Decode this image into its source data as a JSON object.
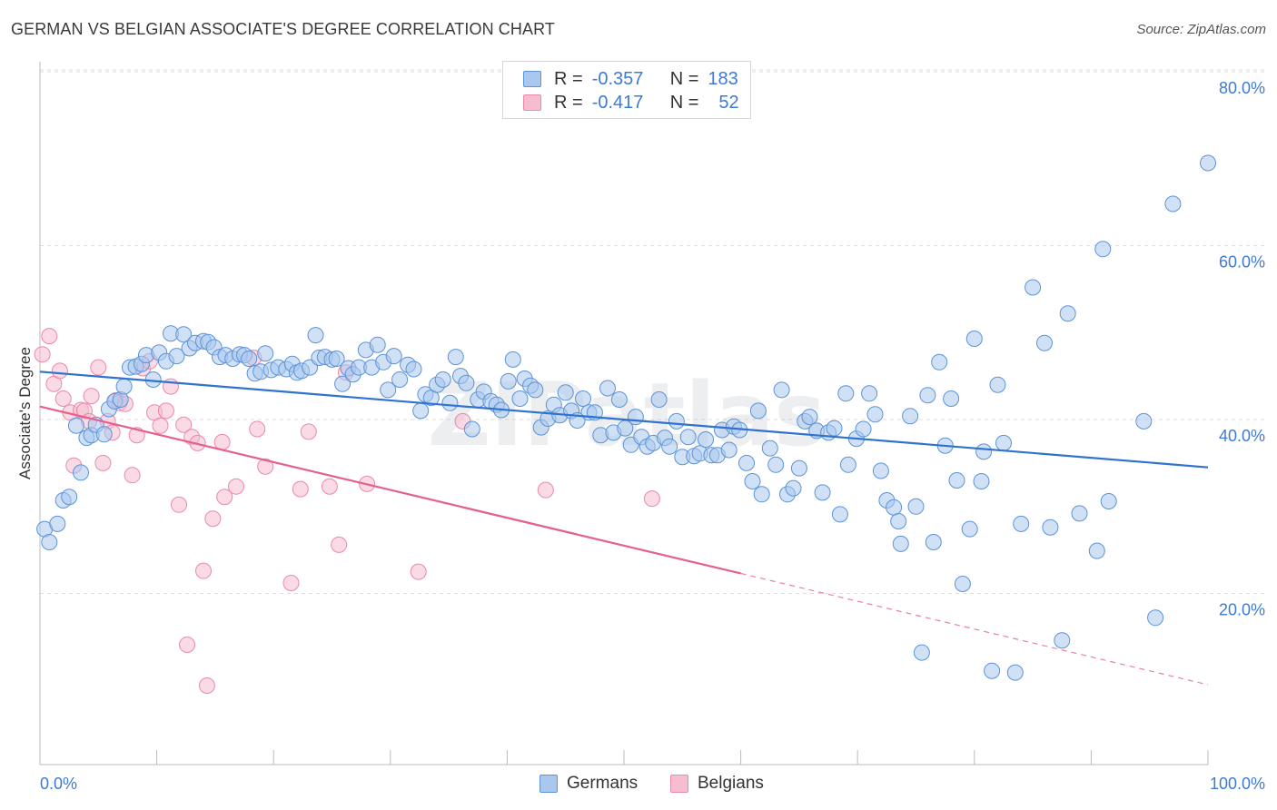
{
  "title": "GERMAN VS BELGIAN ASSOCIATE'S DEGREE CORRELATION CHART",
  "source": "Source: ZipAtlas.com",
  "watermark": "ZIPatlas",
  "legend": {
    "rows": [
      {
        "r_label": "R =",
        "r_value": "-0.357",
        "n_label": "N =",
        "n_value": "183"
      },
      {
        "r_label": "R =",
        "r_value": "-0.417",
        "n_label": "N =",
        "n_value": "52"
      }
    ]
  },
  "bottom_legend": {
    "germans": "Germans",
    "belgians": "Belgians"
  },
  "colors": {
    "german_fill": "#aac8ee",
    "german_stroke": "#5d93d8",
    "german_line": "#2f72cf",
    "belgian_fill": "#f6bccf",
    "belgian_stroke": "#ea8aa8",
    "belgian_line": "#e4618b",
    "tick_text": "#3d7ad6",
    "grid": "#dcdcdc"
  },
  "chart_data": {
    "type": "scatter",
    "xlabel": "",
    "ylabel": "Associate's Degree",
    "xlim": [
      0,
      100
    ],
    "ylim": [
      0,
      80
    ],
    "x_tick_labels": [
      "0.0%",
      "100.0%"
    ],
    "y_ticks": [
      20,
      40,
      60,
      80
    ],
    "y_tick_labels": [
      "20.0%",
      "40.0%",
      "60.0%",
      "80.0%"
    ],
    "grid": true,
    "series": [
      {
        "name": "Germans",
        "r": -0.357,
        "n": 183,
        "trend": {
          "x": [
            0,
            100
          ],
          "y": [
            45.5,
            34.5
          ],
          "solid_until": 100
        },
        "points": [
          [
            0.4,
            27.4
          ],
          [
            0.8,
            25.9
          ],
          [
            1.5,
            28.0
          ],
          [
            2.0,
            30.7
          ],
          [
            2.5,
            31.1
          ],
          [
            3.1,
            39.3
          ],
          [
            3.5,
            33.9
          ],
          [
            4.0,
            37.9
          ],
          [
            4.4,
            38.2
          ],
          [
            4.8,
            39.4
          ],
          [
            5.5,
            38.3
          ],
          [
            5.9,
            41.2
          ],
          [
            6.4,
            42.1
          ],
          [
            6.9,
            42.3
          ],
          [
            7.2,
            43.8
          ],
          [
            7.7,
            46.0
          ],
          [
            8.2,
            46.1
          ],
          [
            8.7,
            46.4
          ],
          [
            9.1,
            47.4
          ],
          [
            9.7,
            44.6
          ],
          [
            10.2,
            47.7
          ],
          [
            10.8,
            46.7
          ],
          [
            11.2,
            49.9
          ],
          [
            11.7,
            47.3
          ],
          [
            12.3,
            49.8
          ],
          [
            12.8,
            48.2
          ],
          [
            13.3,
            48.8
          ],
          [
            14.0,
            49.0
          ],
          [
            14.4,
            48.9
          ],
          [
            14.9,
            48.3
          ],
          [
            15.4,
            47.2
          ],
          [
            15.9,
            47.4
          ],
          [
            16.5,
            47.0
          ],
          [
            17.1,
            47.5
          ],
          [
            17.5,
            47.4
          ],
          [
            17.9,
            47.0
          ],
          [
            18.4,
            45.3
          ],
          [
            18.9,
            45.5
          ],
          [
            19.3,
            47.6
          ],
          [
            19.8,
            45.7
          ],
          [
            20.4,
            46.0
          ],
          [
            21.1,
            45.8
          ],
          [
            21.6,
            46.4
          ],
          [
            22.0,
            45.4
          ],
          [
            22.4,
            45.6
          ],
          [
            23.1,
            46.0
          ],
          [
            23.6,
            49.7
          ],
          [
            23.9,
            47.1
          ],
          [
            24.4,
            47.2
          ],
          [
            25.0,
            46.9
          ],
          [
            25.4,
            47.0
          ],
          [
            25.9,
            44.1
          ],
          [
            26.4,
            45.9
          ],
          [
            26.8,
            45.2
          ],
          [
            27.3,
            46.0
          ],
          [
            27.9,
            48.0
          ],
          [
            28.4,
            46.0
          ],
          [
            28.9,
            48.6
          ],
          [
            29.4,
            46.6
          ],
          [
            29.8,
            43.4
          ],
          [
            30.3,
            47.3
          ],
          [
            30.8,
            44.6
          ],
          [
            31.5,
            46.3
          ],
          [
            32.0,
            45.8
          ],
          [
            32.6,
            41.0
          ],
          [
            33.0,
            42.9
          ],
          [
            33.5,
            42.5
          ],
          [
            34.0,
            44.0
          ],
          [
            34.5,
            44.6
          ],
          [
            35.1,
            41.9
          ],
          [
            35.6,
            47.2
          ],
          [
            36.0,
            45.0
          ],
          [
            36.5,
            44.2
          ],
          [
            37.0,
            38.9
          ],
          [
            37.5,
            42.3
          ],
          [
            38.0,
            43.2
          ],
          [
            38.6,
            42.1
          ],
          [
            39.1,
            41.7
          ],
          [
            39.5,
            41.1
          ],
          [
            40.1,
            44.4
          ],
          [
            40.5,
            46.9
          ],
          [
            41.1,
            42.4
          ],
          [
            41.5,
            44.7
          ],
          [
            42.0,
            43.9
          ],
          [
            42.4,
            43.4
          ],
          [
            42.9,
            39.1
          ],
          [
            43.5,
            40.1
          ],
          [
            44.0,
            41.7
          ],
          [
            44.5,
            40.5
          ],
          [
            45.0,
            43.1
          ],
          [
            45.5,
            41.0
          ],
          [
            46.0,
            39.9
          ],
          [
            46.5,
            42.4
          ],
          [
            47.0,
            40.8
          ],
          [
            47.5,
            40.8
          ],
          [
            48.0,
            38.2
          ],
          [
            48.6,
            43.6
          ],
          [
            49.1,
            38.5
          ],
          [
            49.6,
            42.3
          ],
          [
            50.1,
            39.0
          ],
          [
            50.6,
            37.1
          ],
          [
            51.0,
            40.3
          ],
          [
            51.5,
            38.0
          ],
          [
            52.0,
            36.9
          ],
          [
            52.5,
            37.3
          ],
          [
            53.0,
            42.3
          ],
          [
            53.5,
            37.9
          ],
          [
            53.9,
            36.9
          ],
          [
            54.5,
            39.8
          ],
          [
            55.0,
            35.7
          ],
          [
            55.5,
            38.0
          ],
          [
            56.0,
            35.8
          ],
          [
            56.5,
            36.1
          ],
          [
            57.0,
            37.7
          ],
          [
            57.5,
            35.9
          ],
          [
            58.0,
            35.9
          ],
          [
            58.4,
            38.8
          ],
          [
            59.0,
            36.5
          ],
          [
            59.4,
            39.2
          ],
          [
            59.9,
            38.8
          ],
          [
            60.5,
            35.0
          ],
          [
            61.0,
            32.9
          ],
          [
            61.5,
            41.0
          ],
          [
            61.8,
            31.4
          ],
          [
            62.5,
            36.7
          ],
          [
            63.0,
            34.8
          ],
          [
            63.5,
            43.4
          ],
          [
            64.0,
            31.4
          ],
          [
            64.5,
            32.1
          ],
          [
            65.0,
            34.4
          ],
          [
            65.5,
            39.8
          ],
          [
            65.9,
            40.3
          ],
          [
            66.5,
            38.7
          ],
          [
            67.0,
            31.6
          ],
          [
            67.5,
            38.5
          ],
          [
            68.0,
            39.0
          ],
          [
            68.5,
            29.1
          ],
          [
            69.0,
            43.0
          ],
          [
            69.2,
            34.8
          ],
          [
            69.9,
            37.8
          ],
          [
            70.5,
            38.9
          ],
          [
            71.0,
            43.0
          ],
          [
            71.5,
            40.6
          ],
          [
            72.0,
            34.1
          ],
          [
            72.5,
            30.7
          ],
          [
            73.1,
            29.9
          ],
          [
            73.5,
            28.3
          ],
          [
            73.7,
            25.7
          ],
          [
            74.5,
            40.4
          ],
          [
            75.0,
            30.0
          ],
          [
            75.5,
            13.2
          ],
          [
            76.0,
            42.8
          ],
          [
            76.5,
            25.9
          ],
          [
            77.0,
            46.6
          ],
          [
            77.5,
            37.0
          ],
          [
            78.0,
            42.4
          ],
          [
            78.5,
            33.0
          ],
          [
            79.0,
            21.1
          ],
          [
            79.6,
            27.4
          ],
          [
            80.0,
            49.3
          ],
          [
            80.6,
            32.9
          ],
          [
            80.8,
            36.3
          ],
          [
            81.5,
            11.1
          ],
          [
            82.0,
            44.0
          ],
          [
            82.5,
            37.3
          ],
          [
            83.5,
            10.9
          ],
          [
            84.0,
            28.0
          ],
          [
            85.0,
            55.2
          ],
          [
            86.0,
            48.8
          ],
          [
            86.5,
            27.6
          ],
          [
            87.5,
            14.6
          ],
          [
            88.0,
            52.2
          ],
          [
            89.0,
            29.2
          ],
          [
            90.5,
            24.9
          ],
          [
            91.0,
            59.6
          ],
          [
            91.5,
            30.6
          ],
          [
            94.5,
            39.8
          ],
          [
            95.5,
            17.2
          ],
          [
            97.0,
            64.8
          ],
          [
            100.0,
            69.5
          ]
        ]
      },
      {
        "name": "Belgians",
        "r": -0.417,
        "n": 52,
        "trend": {
          "x": [
            0,
            100
          ],
          "y": [
            41.5,
            9.5
          ],
          "solid_until": 60
        },
        "points": [
          [
            0.2,
            47.5
          ],
          [
            0.8,
            49.6
          ],
          [
            1.2,
            44.1
          ],
          [
            1.7,
            45.6
          ],
          [
            2.0,
            42.4
          ],
          [
            2.6,
            40.8
          ],
          [
            2.9,
            34.7
          ],
          [
            3.5,
            41.1
          ],
          [
            3.8,
            41.0
          ],
          [
            4.2,
            39.8
          ],
          [
            4.4,
            42.7
          ],
          [
            5.0,
            46.0
          ],
          [
            5.4,
            35.0
          ],
          [
            5.8,
            39.8
          ],
          [
            6.2,
            38.5
          ],
          [
            6.5,
            42.2
          ],
          [
            6.8,
            41.9
          ],
          [
            7.3,
            41.8
          ],
          [
            7.9,
            33.6
          ],
          [
            8.3,
            38.2
          ],
          [
            8.8,
            45.9
          ],
          [
            9.4,
            46.7
          ],
          [
            9.8,
            40.8
          ],
          [
            10.3,
            39.3
          ],
          [
            10.8,
            41.0
          ],
          [
            11.2,
            43.8
          ],
          [
            11.9,
            30.2
          ],
          [
            12.3,
            39.4
          ],
          [
            12.6,
            14.1
          ],
          [
            13.0,
            38.0
          ],
          [
            13.5,
            37.3
          ],
          [
            14.0,
            22.6
          ],
          [
            14.3,
            9.4
          ],
          [
            14.8,
            28.6
          ],
          [
            15.6,
            37.4
          ],
          [
            15.8,
            31.1
          ],
          [
            16.8,
            32.3
          ],
          [
            18.3,
            47.1
          ],
          [
            18.6,
            38.9
          ],
          [
            19.3,
            34.6
          ],
          [
            21.5,
            21.2
          ],
          [
            22.3,
            32.0
          ],
          [
            23.0,
            38.6
          ],
          [
            24.8,
            32.3
          ],
          [
            25.6,
            25.6
          ],
          [
            26.2,
            45.4
          ],
          [
            28.0,
            32.6
          ],
          [
            32.4,
            22.5
          ],
          [
            36.2,
            39.8
          ],
          [
            43.3,
            31.9
          ],
          [
            52.4,
            30.9
          ]
        ]
      }
    ]
  }
}
